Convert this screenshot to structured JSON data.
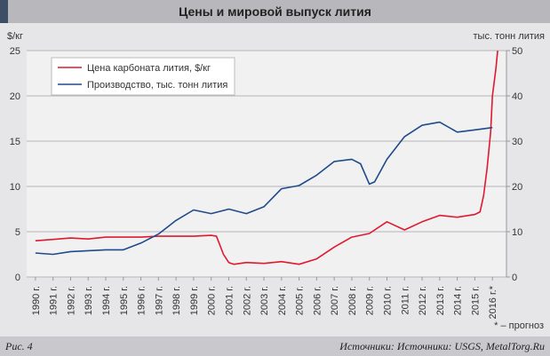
{
  "title": "Цены и мировой выпуск лития",
  "footer": {
    "figure": "Рис. 4",
    "sources": "Источники: Источники: USGS, MetalTorg.Ru"
  },
  "note": "* – прогноз",
  "chart_data": {
    "type": "line",
    "title": "Цены и мировой выпуск лития",
    "ylabel": "$/кг",
    "y2label": "тыс. тонн лития",
    "ylim": [
      0,
      25
    ],
    "yticks": [
      0,
      5,
      10,
      15,
      20,
      25
    ],
    "y2lim": [
      0,
      50
    ],
    "y2ticks": [
      0,
      10,
      20,
      30,
      40,
      50
    ],
    "xlim": [
      1989.5,
      2016.8
    ],
    "categories": [
      "1990 г.",
      "1991 г.",
      "1992 г.",
      "1993 г.",
      "1994 г.",
      "1995 г.",
      "1996 г.",
      "1997 г.",
      "1998 г.",
      "1999 г.",
      "2000 г.",
      "2001 г.",
      "2002 г.",
      "2003 г.",
      "2004 г.",
      "2005 г.",
      "2006 г.",
      "2007 г.",
      "2008 г.",
      "2009 г.",
      "2010 г.",
      "2011 г.",
      "2012 г.",
      "2013 г.",
      "2014 г.",
      "2015 г.",
      "2016 г.*"
    ],
    "grid": "horizontal",
    "legend_position": "top-left",
    "series": [
      {
        "name": "Цена карбоната лития, $/кг",
        "axis": "left",
        "color": "#e0192f",
        "x": [
          1990,
          1991,
          1992,
          1993,
          1994,
          1995,
          1996,
          1997,
          1998,
          1999,
          2000,
          2000.3,
          2000.7,
          2001,
          2001.3,
          2002,
          2003,
          2004,
          2005,
          2006,
          2007,
          2008,
          2009,
          2010,
          2011,
          2012,
          2013,
          2014,
          2015,
          2015.3,
          2015.5,
          2015.7,
          2015.9,
          2016,
          2016.2,
          2016.3
        ],
        "y": [
          4.0,
          4.15,
          4.3,
          4.2,
          4.4,
          4.4,
          4.4,
          4.5,
          4.5,
          4.5,
          4.6,
          4.5,
          2.5,
          1.6,
          1.4,
          1.6,
          1.5,
          1.7,
          1.4,
          2.0,
          3.3,
          4.4,
          4.8,
          6.1,
          5.2,
          6.1,
          6.8,
          6.6,
          6.9,
          7.2,
          9,
          12,
          16,
          20,
          23,
          25
        ]
      },
      {
        "name": "Производство, тыс. тонн лития",
        "axis": "right",
        "color": "#1f4a8c",
        "x": [
          1990,
          1991,
          1992,
          1993,
          1994,
          1995,
          1996,
          1997,
          1998,
          1999,
          2000,
          2001,
          2002,
          2003,
          2004,
          2005,
          2006,
          2007,
          2008,
          2008.5,
          2009,
          2009.3,
          2010,
          2011,
          2012,
          2013,
          2014,
          2015,
          2016
        ],
        "y": [
          5.3,
          5.0,
          5.6,
          5.8,
          6.0,
          6.0,
          7.5,
          9.5,
          12.5,
          14.8,
          14.0,
          15.0,
          14.0,
          15.5,
          19.5,
          20.2,
          22.5,
          25.5,
          26.0,
          25.0,
          20.5,
          21.0,
          26.0,
          31.0,
          33.5,
          34.2,
          32.0,
          32.5,
          33.0
        ]
      }
    ]
  }
}
